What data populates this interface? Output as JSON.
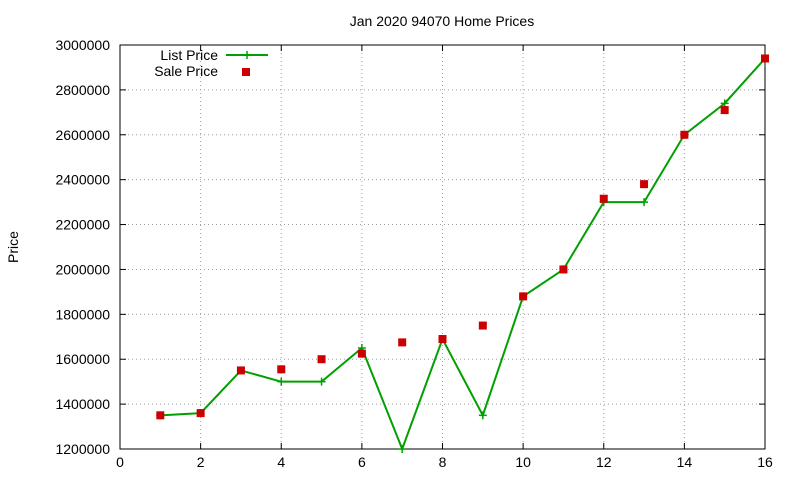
{
  "chart_data": {
    "type": "line",
    "title": "Jan 2020 94070 Home Prices",
    "xlabel": "",
    "ylabel": "Price",
    "xlim": [
      0,
      16
    ],
    "ylim": [
      1200000,
      3000000
    ],
    "x_ticks": [
      "0",
      "2",
      "4",
      "6",
      "8",
      "10",
      "12",
      "14",
      "16"
    ],
    "y_ticks": [
      "1200000",
      "1400000",
      "1600000",
      "1800000",
      "2000000",
      "2200000",
      "2400000",
      "2600000",
      "2800000",
      "3000000"
    ],
    "grid": true,
    "legend_position": "top-left",
    "series": [
      {
        "name": "List Price",
        "style": "line-with-plus-markers",
        "color": "#00a000",
        "x": [
          1,
          2,
          3,
          4,
          5,
          6,
          7,
          8,
          9,
          10,
          11,
          12,
          13,
          14,
          15,
          16
        ],
        "values": [
          1350000,
          1360000,
          1550000,
          1500000,
          1500000,
          1650000,
          1200000,
          1690000,
          1350000,
          1880000,
          2000000,
          2300000,
          2300000,
          2600000,
          2740000,
          2940000
        ]
      },
      {
        "name": "Sale Price",
        "style": "square-markers",
        "color": "#cc0000",
        "x": [
          1,
          2,
          3,
          4,
          5,
          6,
          7,
          8,
          9,
          10,
          11,
          12,
          13,
          14,
          15,
          16
        ],
        "values": [
          1350000,
          1360000,
          1550000,
          1555000,
          1600000,
          1625000,
          1675000,
          1690000,
          1750000,
          1880000,
          2000000,
          2315000,
          2380000,
          2600000,
          2710000,
          2940000
        ]
      }
    ]
  }
}
